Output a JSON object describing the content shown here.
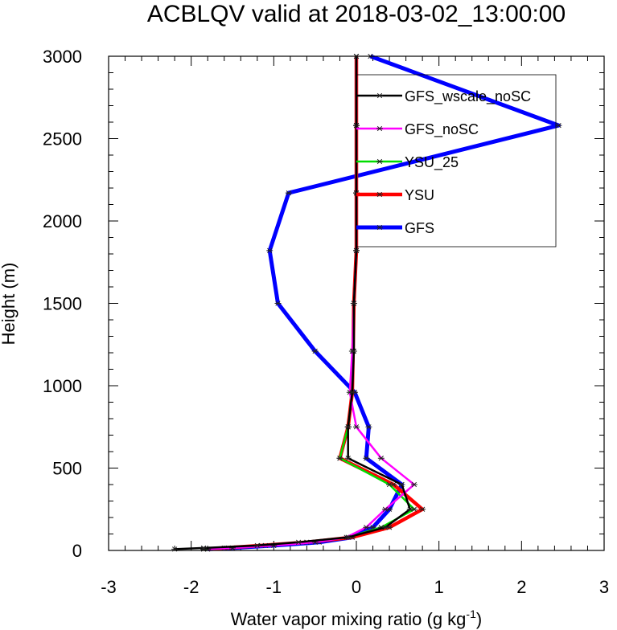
{
  "chart_data": {
    "type": "line",
    "title": "ACBLQV valid at 2018-03-02_13:00:00",
    "xlabel_main": "Water vapor mixing ratio (g kg",
    "xlabel_sup": "-1",
    "xlabel_close": ")",
    "ylabel": "Height (m)",
    "xlim": [
      -3,
      3
    ],
    "ylim": [
      0,
      3000
    ],
    "xticks": [
      -3,
      -2,
      -1,
      0,
      1,
      2,
      3
    ],
    "yticks": [
      0,
      500,
      1000,
      1500,
      2000,
      2500,
      3000
    ],
    "xtick_labels": [
      "-3",
      "-2",
      "-1",
      "0",
      "1",
      "2",
      "3"
    ],
    "ytick_labels": [
      "0",
      "500",
      "1000",
      "1500",
      "2000",
      "2500",
      "3000"
    ],
    "heights": [
      8,
      15,
      30,
      50,
      80,
      140,
      250,
      400,
      560,
      750,
      960,
      1210,
      1500,
      1820,
      2170,
      2580,
      3000
    ],
    "series": [
      {
        "name": "GFS_wscale_noSC",
        "color": "#000000",
        "width": 2.5,
        "values": [
          -2.2,
          -1.85,
          -1.2,
          -0.7,
          -0.1,
          0.35,
          0.65,
          0.55,
          -0.1,
          -0.1,
          -0.05,
          -0.03,
          -0.03,
          0.0,
          0.0,
          0.0,
          0.0
        ]
      },
      {
        "name": "GFS_noSC",
        "color": "#ff00ff",
        "width": 2.5,
        "values": [
          -1.8,
          -1.5,
          -1.0,
          -0.5,
          -0.12,
          0.12,
          0.35,
          0.7,
          0.3,
          0.0,
          -0.08,
          -0.05,
          -0.03,
          0.0,
          0.0,
          0.0,
          0.0
        ]
      },
      {
        "name": "YSU_25",
        "color": "#00dd00",
        "width": 2.5,
        "values": [
          -1.85,
          -1.55,
          -1.1,
          -0.6,
          -0.1,
          0.3,
          0.7,
          0.4,
          -0.2,
          -0.1,
          -0.05,
          -0.04,
          -0.03,
          0.0,
          0.0,
          0.0,
          0.0
        ]
      },
      {
        "name": "YSU",
        "color": "#ff0000",
        "width": 4.5,
        "values": [
          -1.85,
          -1.6,
          -1.15,
          -0.6,
          -0.05,
          0.4,
          0.8,
          0.45,
          -0.2,
          -0.1,
          -0.05,
          -0.04,
          -0.03,
          0.0,
          0.0,
          0.0,
          0.0
        ]
      },
      {
        "name": "GFS",
        "color": "#0000ff",
        "width": 5,
        "values": [
          -1.8,
          -1.5,
          -1.0,
          -0.45,
          -0.05,
          0.2,
          0.4,
          0.55,
          0.12,
          0.15,
          -0.02,
          -0.5,
          -0.95,
          -1.05,
          -0.82,
          2.45,
          0.17
        ]
      }
    ],
    "legend_order": [
      "GFS_wscale_noSC",
      "GFS_noSC",
      "YSU_25",
      "YSU",
      "GFS"
    ],
    "legend_placement": "top-right",
    "grid": false
  }
}
